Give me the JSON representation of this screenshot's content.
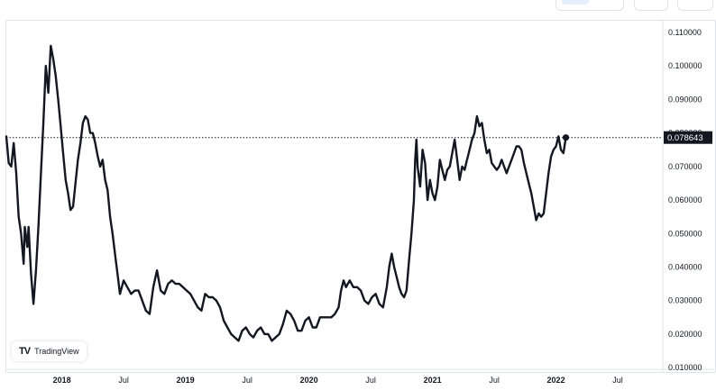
{
  "branding": {
    "logo_mark": "TV",
    "logo_text": "TradingView"
  },
  "chart_data": {
    "type": "line",
    "title": "",
    "last_value_label": "0.078643",
    "y_ticks": [
      "0.110000",
      "0.100000",
      "0.090000",
      "0.080000",
      "0.070000",
      "0.060000",
      "0.050000",
      "0.040000",
      "0.030000",
      "0.020000",
      "0.010000"
    ],
    "y_tick_values": [
      0.11,
      0.1,
      0.09,
      0.08,
      0.07,
      0.06,
      0.05,
      0.04,
      0.03,
      0.02,
      0.01
    ],
    "ylim": [
      0.0095,
      0.1135
    ],
    "x_range": [
      2017.55,
      2022.85
    ],
    "x_ticks": [
      {
        "label": "2018",
        "x": 2018.0,
        "year": true
      },
      {
        "label": "Jul",
        "x": 2018.5,
        "year": false
      },
      {
        "label": "2019",
        "x": 2019.0,
        "year": true
      },
      {
        "label": "Jul",
        "x": 2019.5,
        "year": false
      },
      {
        "label": "2020",
        "x": 2020.0,
        "year": true
      },
      {
        "label": "Jul",
        "x": 2020.5,
        "year": false
      },
      {
        "label": "2021",
        "x": 2021.0,
        "year": true
      },
      {
        "label": "Jul",
        "x": 2021.5,
        "year": false
      },
      {
        "label": "2022",
        "x": 2022.0,
        "year": true
      },
      {
        "label": "Jul",
        "x": 2022.5,
        "year": false
      }
    ],
    "grid": false,
    "series": [
      {
        "color": "#131722",
        "points": [
          [
            2017.55,
            0.079
          ],
          [
            2017.57,
            0.071
          ],
          [
            2017.59,
            0.07
          ],
          [
            2017.61,
            0.077
          ],
          [
            2017.63,
            0.068
          ],
          [
            2017.65,
            0.055
          ],
          [
            2017.67,
            0.05
          ],
          [
            2017.69,
            0.041
          ],
          [
            2017.7,
            0.052
          ],
          [
            2017.72,
            0.046
          ],
          [
            2017.73,
            0.052
          ],
          [
            2017.75,
            0.038
          ],
          [
            2017.77,
            0.029
          ],
          [
            2017.79,
            0.039
          ],
          [
            2017.81,
            0.052
          ],
          [
            2017.83,
            0.068
          ],
          [
            2017.85,
            0.083
          ],
          [
            2017.87,
            0.1
          ],
          [
            2017.89,
            0.092
          ],
          [
            2017.91,
            0.106
          ],
          [
            2017.93,
            0.102
          ],
          [
            2017.95,
            0.097
          ],
          [
            2017.97,
            0.09
          ],
          [
            2017.99,
            0.082
          ],
          [
            2018.01,
            0.074
          ],
          [
            2018.03,
            0.066
          ],
          [
            2018.05,
            0.062
          ],
          [
            2018.07,
            0.057
          ],
          [
            2018.09,
            0.058
          ],
          [
            2018.11,
            0.065
          ],
          [
            2018.13,
            0.072
          ],
          [
            2018.15,
            0.077
          ],
          [
            2018.17,
            0.083
          ],
          [
            2018.19,
            0.085
          ],
          [
            2018.21,
            0.084
          ],
          [
            2018.23,
            0.08
          ],
          [
            2018.25,
            0.08
          ],
          [
            2018.27,
            0.077
          ],
          [
            2018.29,
            0.073
          ],
          [
            2018.31,
            0.07
          ],
          [
            2018.33,
            0.072
          ],
          [
            2018.35,
            0.066
          ],
          [
            2018.37,
            0.063
          ],
          [
            2018.39,
            0.055
          ],
          [
            2018.41,
            0.05
          ],
          [
            2018.43,
            0.044
          ],
          [
            2018.45,
            0.038
          ],
          [
            2018.47,
            0.032
          ],
          [
            2018.5,
            0.036
          ],
          [
            2018.53,
            0.034
          ],
          [
            2018.56,
            0.032
          ],
          [
            2018.59,
            0.033
          ],
          [
            2018.62,
            0.033
          ],
          [
            2018.65,
            0.03
          ],
          [
            2018.68,
            0.027
          ],
          [
            2018.71,
            0.026
          ],
          [
            2018.74,
            0.034
          ],
          [
            2018.77,
            0.039
          ],
          [
            2018.8,
            0.033
          ],
          [
            2018.83,
            0.032
          ],
          [
            2018.86,
            0.035
          ],
          [
            2018.89,
            0.036
          ],
          [
            2018.92,
            0.035
          ],
          [
            2018.95,
            0.035
          ],
          [
            2018.98,
            0.034
          ],
          [
            2019.01,
            0.033
          ],
          [
            2019.04,
            0.032
          ],
          [
            2019.07,
            0.03
          ],
          [
            2019.1,
            0.028
          ],
          [
            2019.13,
            0.027
          ],
          [
            2019.16,
            0.032
          ],
          [
            2019.19,
            0.031
          ],
          [
            2019.22,
            0.031
          ],
          [
            2019.25,
            0.03
          ],
          [
            2019.28,
            0.028
          ],
          [
            2019.31,
            0.024
          ],
          [
            2019.34,
            0.022
          ],
          [
            2019.37,
            0.02
          ],
          [
            2019.4,
            0.019
          ],
          [
            2019.43,
            0.018
          ],
          [
            2019.46,
            0.021
          ],
          [
            2019.49,
            0.022
          ],
          [
            2019.52,
            0.02
          ],
          [
            2019.55,
            0.019
          ],
          [
            2019.58,
            0.021
          ],
          [
            2019.61,
            0.022
          ],
          [
            2019.64,
            0.02
          ],
          [
            2019.67,
            0.02
          ],
          [
            2019.7,
            0.018
          ],
          [
            2019.73,
            0.019
          ],
          [
            2019.76,
            0.02
          ],
          [
            2019.79,
            0.023
          ],
          [
            2019.82,
            0.027
          ],
          [
            2019.85,
            0.026
          ],
          [
            2019.88,
            0.024
          ],
          [
            2019.91,
            0.021
          ],
          [
            2019.94,
            0.021
          ],
          [
            2019.97,
            0.024
          ],
          [
            2020.0,
            0.025
          ],
          [
            2020.03,
            0.022
          ],
          [
            2020.06,
            0.022
          ],
          [
            2020.09,
            0.025
          ],
          [
            2020.12,
            0.025
          ],
          [
            2020.15,
            0.025
          ],
          [
            2020.18,
            0.025
          ],
          [
            2020.21,
            0.026
          ],
          [
            2020.24,
            0.028
          ],
          [
            2020.26,
            0.033
          ],
          [
            2020.28,
            0.036
          ],
          [
            2020.3,
            0.034
          ],
          [
            2020.33,
            0.036
          ],
          [
            2020.36,
            0.034
          ],
          [
            2020.39,
            0.034
          ],
          [
            2020.42,
            0.033
          ],
          [
            2020.45,
            0.03
          ],
          [
            2020.48,
            0.029
          ],
          [
            2020.51,
            0.031
          ],
          [
            2020.54,
            0.032
          ],
          [
            2020.57,
            0.029
          ],
          [
            2020.6,
            0.028
          ],
          [
            2020.63,
            0.034
          ],
          [
            2020.65,
            0.04
          ],
          [
            2020.67,
            0.044
          ],
          [
            2020.69,
            0.04
          ],
          [
            2020.71,
            0.037
          ],
          [
            2020.73,
            0.034
          ],
          [
            2020.75,
            0.032
          ],
          [
            2020.77,
            0.031
          ],
          [
            2020.79,
            0.033
          ],
          [
            2020.81,
            0.042
          ],
          [
            2020.83,
            0.05
          ],
          [
            2020.85,
            0.06
          ],
          [
            2020.86,
            0.072
          ],
          [
            2020.87,
            0.078
          ],
          [
            2020.88,
            0.07
          ],
          [
            2020.9,
            0.064
          ],
          [
            2020.92,
            0.075
          ],
          [
            2020.94,
            0.071
          ],
          [
            2020.96,
            0.06
          ],
          [
            2020.98,
            0.066
          ],
          [
            2021.0,
            0.062
          ],
          [
            2021.02,
            0.06
          ],
          [
            2021.04,
            0.064
          ],
          [
            2021.06,
            0.072
          ],
          [
            2021.08,
            0.069
          ],
          [
            2021.1,
            0.066
          ],
          [
            2021.12,
            0.069
          ],
          [
            2021.14,
            0.07
          ],
          [
            2021.16,
            0.074
          ],
          [
            2021.18,
            0.078
          ],
          [
            2021.2,
            0.072
          ],
          [
            2021.22,
            0.066
          ],
          [
            2021.24,
            0.07
          ],
          [
            2021.26,
            0.069
          ],
          [
            2021.28,
            0.072
          ],
          [
            2021.3,
            0.075
          ],
          [
            2021.32,
            0.078
          ],
          [
            2021.34,
            0.08
          ],
          [
            2021.36,
            0.085
          ],
          [
            2021.38,
            0.082
          ],
          [
            2021.4,
            0.083
          ],
          [
            2021.42,
            0.078
          ],
          [
            2021.44,
            0.074
          ],
          [
            2021.46,
            0.075
          ],
          [
            2021.48,
            0.071
          ],
          [
            2021.5,
            0.07
          ],
          [
            2021.52,
            0.069
          ],
          [
            2021.54,
            0.07
          ],
          [
            2021.56,
            0.072
          ],
          [
            2021.58,
            0.07
          ],
          [
            2021.6,
            0.068
          ],
          [
            2021.62,
            0.07
          ],
          [
            2021.64,
            0.072
          ],
          [
            2021.66,
            0.074
          ],
          [
            2021.68,
            0.076
          ],
          [
            2021.7,
            0.076
          ],
          [
            2021.72,
            0.075
          ],
          [
            2021.74,
            0.071
          ],
          [
            2021.76,
            0.068
          ],
          [
            2021.78,
            0.065
          ],
          [
            2021.8,
            0.062
          ],
          [
            2021.82,
            0.058
          ],
          [
            2021.84,
            0.054
          ],
          [
            2021.86,
            0.056
          ],
          [
            2021.88,
            0.055
          ],
          [
            2021.9,
            0.056
          ],
          [
            2021.92,
            0.062
          ],
          [
            2021.94,
            0.068
          ],
          [
            2021.96,
            0.073
          ],
          [
            2021.98,
            0.075
          ],
          [
            2022.0,
            0.076
          ],
          [
            2022.02,
            0.079
          ],
          [
            2022.04,
            0.075
          ],
          [
            2022.06,
            0.074
          ],
          [
            2022.08,
            0.078643
          ]
        ]
      }
    ]
  }
}
